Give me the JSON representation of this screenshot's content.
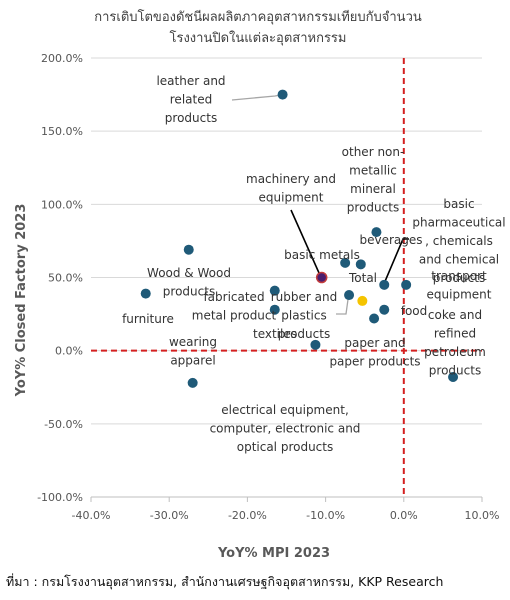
{
  "title_lines": [
    "การเติบโตของดัชนีผลผลิตภาคอุตสาหกรรมเทียบกับจำนวน",
    "โรงงานปิดในแต่ละอุตสาหกรรม"
  ],
  "source": "ที่มา : กรมโรงงานอุตสาหกรรม, สำนักงานเศรษฐกิจอุตสาหกรรม, KKP Research",
  "colors": {
    "point": "#1f5a78",
    "total": "#f5c400",
    "highlight": "#4b1d6e",
    "refline": "#d42020",
    "grid": "#d9d9d9"
  },
  "chart_data": {
    "type": "scatter",
    "xlabel": "YoY% MPI 2023",
    "ylabel": "YoY% Closed Factory 2023",
    "xlim": [
      -40,
      10
    ],
    "ylim": [
      -100,
      200
    ],
    "x_ticks": [
      "-40.0%",
      "-30.0%",
      "-20.0%",
      "-10.0%",
      "0.0%",
      "10.0%"
    ],
    "y_ticks": [
      "-100.0%",
      "-50.0%",
      "0.0%",
      "50.0%",
      "100.0%",
      "150.0%",
      "200.0%"
    ],
    "grid": "horizontal",
    "reference_lines": {
      "x": 0,
      "y": 0
    },
    "points": [
      {
        "label": [
          "leather and",
          "related",
          "products"
        ],
        "x": -15.5,
        "y": 175
      },
      {
        "label": [
          "other non-",
          "metallic",
          "mineral",
          "products"
        ],
        "x": -3.5,
        "y": 81
      },
      {
        "label": [
          "machinery and",
          "equipment"
        ],
        "x": -10.5,
        "y": 50,
        "highlight": true
      },
      {
        "label": [
          "basic metals"
        ],
        "x": -7.5,
        "y": 60
      },
      {
        "label": [
          "beverages"
        ],
        "x": -5.5,
        "y": 59
      },
      {
        "label": [
          "basic",
          "pharmaceutical",
          ", chemicals",
          "and chemical",
          "products"
        ],
        "x": -2.5,
        "y": 45
      },
      {
        "label": [
          "transport",
          "equipment"
        ],
        "x": 0.3,
        "y": 45
      },
      {
        "label": [
          "Wood & Wood",
          "products"
        ],
        "x": -27.5,
        "y": 69
      },
      {
        "label": [
          "furniture"
        ],
        "x": -33,
        "y": 39
      },
      {
        "label": [
          "fabricated",
          "metal product"
        ],
        "x": -16.5,
        "y": 41
      },
      {
        "label": [
          "rubber and",
          "plastics",
          "products"
        ],
        "x": -7,
        "y": 38
      },
      {
        "label": [
          "Total"
        ],
        "x": -5.3,
        "y": 34,
        "total": true
      },
      {
        "label": [
          "food"
        ],
        "x": -2.5,
        "y": 28
      },
      {
        "label": [
          "textiles"
        ],
        "x": -16.5,
        "y": 28
      },
      {
        "label": [
          "paper and",
          "paper products"
        ],
        "x": -3.8,
        "y": 22
      },
      {
        "label": [
          "coke and",
          "refined",
          "petroleum",
          "products"
        ],
        "x": 6.3,
        "y": -18
      },
      {
        "label": [
          "wearing",
          "apparel"
        ],
        "x": -27,
        "y": -22
      },
      {
        "label": [
          "electrical equipment,",
          "computer, electronic and",
          "optical products"
        ],
        "x": -11.3,
        "y": 4
      }
    ]
  }
}
